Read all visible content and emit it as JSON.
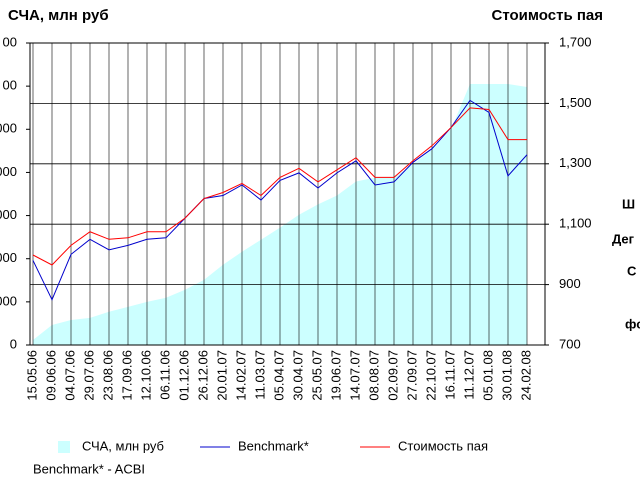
{
  "chart_data": {
    "type": "line",
    "title_left": "СЧА, млн руб",
    "title_right": "Стоимость пая",
    "footnote": "Benchmark* - ACBI",
    "side_text": [
      "Ш",
      "Дег",
      "С",
      "фо"
    ],
    "categories": [
      "15.05.06",
      "09.06.06",
      "04.07.06",
      "29.07.06",
      "23.08.06",
      "17.09.06",
      "12.10.06",
      "06.11.06",
      "01.12.06",
      "26.12.06",
      "20.01.07",
      "14.02.07",
      "11.03.07",
      "05.04.07",
      "30.04.07",
      "25.05.07",
      "19.06.07",
      "14.07.07",
      "08.08.07",
      "02.09.07",
      "27.09.07",
      "22.10.07",
      "16.11.07",
      "11.12.07",
      "05.01.08",
      "30.01.08",
      "24.02.08"
    ],
    "series": [
      {
        "name": "СЧА, млн руб",
        "type": "area",
        "axis": "y",
        "color": "#ccffff",
        "values": [
          115,
          465,
          580,
          630,
          770,
          885,
          1000,
          1095,
          1280,
          1510,
          1860,
          2160,
          2440,
          2720,
          3020,
          3260,
          3465,
          3790,
          3880,
          3880,
          4190,
          4530,
          5000,
          6050,
          6050,
          6050,
          5980
        ]
      },
      {
        "name": "Benchmark*",
        "type": "line",
        "axis": "y2",
        "color": "#0000cc",
        "values": [
          980,
          850,
          1000,
          1050,
          1015,
          1030,
          1050,
          1055,
          1120,
          1185,
          1195,
          1230,
          1180,
          1245,
          1270,
          1220,
          1270,
          1310,
          1230,
          1240,
          1305,
          1350,
          1420,
          1510,
          1470,
          1260,
          1330
        ]
      },
      {
        "name": "Стоимость пая",
        "type": "line",
        "axis": "y2",
        "color": "#ff0000",
        "values": [
          998,
          965,
          1030,
          1075,
          1050,
          1055,
          1075,
          1075,
          1120,
          1185,
          1205,
          1235,
          1195,
          1255,
          1285,
          1240,
          1280,
          1320,
          1255,
          1255,
          1310,
          1360,
          1420,
          1485,
          1480,
          1380,
          1380
        ]
      }
    ],
    "ylim": [
      0,
      7000
    ],
    "yticks": [
      {
        "value": 0,
        "label": "0"
      },
      {
        "value": 1000,
        "label": "000"
      },
      {
        "value": 2000,
        "label": "000"
      },
      {
        "value": 3000,
        "label": "000"
      },
      {
        "value": 4000,
        "label": "000"
      },
      {
        "value": 5000,
        "label": "000"
      },
      {
        "value": 6000,
        "label": "00"
      },
      {
        "value": 7000,
        "label": "00"
      }
    ],
    "y2lim": [
      700,
      1700
    ],
    "y2ticks": [
      {
        "value": 700,
        "label": "700"
      },
      {
        "value": 900,
        "label": "900"
      },
      {
        "value": 1100,
        "label": "1,100"
      },
      {
        "value": 1300,
        "label": "1,300"
      },
      {
        "value": 1500,
        "label": "1,500"
      },
      {
        "value": 1700,
        "label": "1,700"
      }
    ],
    "grid": true
  }
}
